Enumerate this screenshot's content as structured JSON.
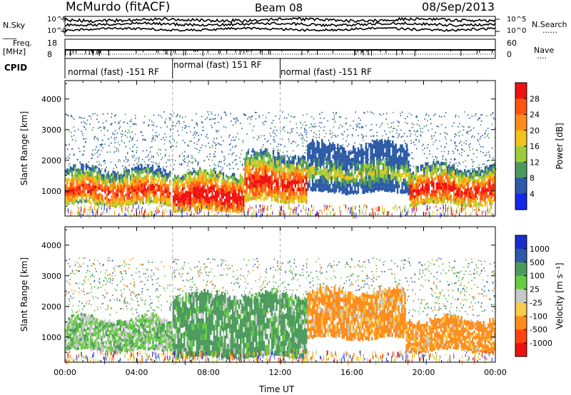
{
  "header": {
    "station": "McMurdo (fitACF)",
    "beam": "Beam 08",
    "date": "08/Sep/2013"
  },
  "top_strip": {
    "left_label": "N.Sky",
    "right_label": "N.Search",
    "right_legend": "......",
    "left_ticks": [
      "10^5",
      "10^0"
    ],
    "right_ticks": [
      "10^5",
      "10^0"
    ]
  },
  "freq_strip": {
    "left_label_1": "Freq.",
    "left_label_2": "[MHz]",
    "left_ticks": [
      "18",
      "8"
    ],
    "right_label": "Nave",
    "right_legend": "....",
    "right_ticks": [
      "60",
      "0"
    ]
  },
  "cpid": {
    "label": "CPID",
    "segments": [
      {
        "text": "normal (fast) -151 RF",
        "start_h": 0,
        "end_h": 6
      },
      {
        "text": "normal (fast) 151 RF",
        "start_h": 6,
        "end_h": 12
      },
      {
        "text": "normal (fast) -151 RF",
        "start_h": 12,
        "end_h": 24
      }
    ]
  },
  "chart_data": [
    {
      "type": "heatmap",
      "xlabel": "Time UT",
      "ylabel": "Slant Range [km]",
      "xlim": [
        0,
        24
      ],
      "ylim": [
        180,
        4600
      ],
      "x_ticks": [
        0,
        4,
        8,
        12,
        16,
        20,
        24
      ],
      "x_tick_labels": [
        "00:00",
        "04:00",
        "08:00",
        "12:00",
        "16:00",
        "20:00",
        "00:00"
      ],
      "y_ticks": [
        1000,
        2000,
        3000,
        4000
      ],
      "y_tick_labels": [
        "1000",
        "2000",
        "3000",
        "4000"
      ],
      "colorbar": {
        "label": "Power [dB]",
        "tick_labels": [
          "28",
          "24",
          "20",
          "16",
          "12",
          "8",
          "4"
        ],
        "colors": [
          "#ee1111",
          "#ff5511",
          "#ff8c1a",
          "#f2c419",
          "#9ccc3a",
          "#4c9a5e",
          "#2c5aa8",
          "#1428e8"
        ]
      },
      "features": [
        {
          "start_h": 0.0,
          "end_h": 5.9,
          "low_km": 500,
          "high_km": 1600,
          "level": 0.75
        },
        {
          "start_h": 6.0,
          "end_h": 10.0,
          "low_km": 300,
          "high_km": 1500,
          "level": 0.9
        },
        {
          "start_h": 10.0,
          "end_h": 13.5,
          "low_km": 600,
          "high_km": 2100,
          "level": 0.8
        },
        {
          "start_h": 13.5,
          "end_h": 19.2,
          "low_km": 900,
          "high_km": 2400,
          "level": 0.3
        },
        {
          "start_h": 19.2,
          "end_h": 24.0,
          "low_km": 500,
          "high_km": 1700,
          "level": 0.8
        }
      ]
    },
    {
      "type": "heatmap",
      "xlabel": "Time UT",
      "ylabel": "Slant Range [km]",
      "xlim": [
        0,
        24
      ],
      "ylim": [
        180,
        4600
      ],
      "x_ticks": [
        0,
        4,
        8,
        12,
        16,
        20,
        24
      ],
      "x_tick_labels": [
        "00:00",
        "04:00",
        "08:00",
        "12:00",
        "16:00",
        "20:00",
        "00:00"
      ],
      "y_ticks": [
        1000,
        2000,
        3000,
        4000
      ],
      "y_tick_labels": [
        "1000",
        "2000",
        "3000",
        "4000"
      ],
      "colorbar": {
        "label": "Velocity [m s^-1]",
        "tick_labels": [
          "1000",
          "500",
          "100",
          "25",
          "-25",
          "-100",
          "-500",
          "-1000"
        ],
        "colors": [
          "#1a2ec8",
          "#2c5aa8",
          "#4c9a5e",
          "#66cc44",
          "#c8c8c8",
          "#f7cc4a",
          "#ff8c1a",
          "#ff4411",
          "#ee1111"
        ]
      },
      "features": [
        {
          "start_h": 0.0,
          "end_h": 6.0,
          "low_km": 500,
          "high_km": 1500,
          "value": 80
        },
        {
          "start_h": 6.0,
          "end_h": 13.5,
          "low_km": 300,
          "high_km": 2300,
          "value": 300
        },
        {
          "start_h": 13.5,
          "end_h": 19.0,
          "low_km": 900,
          "high_km": 2400,
          "value": -300
        },
        {
          "start_h": 19.0,
          "end_h": 24.0,
          "low_km": 500,
          "high_km": 1500,
          "value": -300
        }
      ]
    }
  ]
}
